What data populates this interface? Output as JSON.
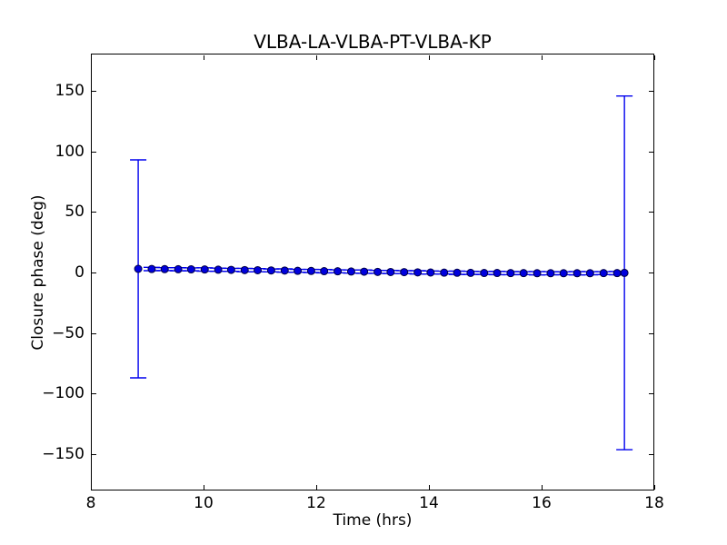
{
  "colors": {
    "background": "#ffffff",
    "frame": "#000000",
    "text": "#000000",
    "marker_face": "#0000dd",
    "marker_edge": "#000044",
    "errorbar": "#0000ee"
  },
  "chart_data": {
    "type": "scatter",
    "title": "VLBA-LA-VLBA-PT-VLBA-KP",
    "xlabel": "Time (hrs)",
    "ylabel": "Closure phase (deg)",
    "xlim": [
      8,
      18
    ],
    "ylim": [
      -180,
      180
    ],
    "xticks": [
      8,
      10,
      12,
      14,
      16,
      18
    ],
    "yticks": [
      150,
      100,
      50,
      0,
      -50,
      -100,
      -150
    ],
    "grid": false,
    "legend": false,
    "marker": "circle",
    "marker_size_px": 9,
    "errorbar_capsize_px": 18,
    "series": [
      {
        "name": "closure-phase",
        "x": [
          8.84,
          9.08,
          9.31,
          9.55,
          9.78,
          10.02,
          10.26,
          10.49,
          10.73,
          10.96,
          11.2,
          11.44,
          11.67,
          11.91,
          12.14,
          12.38,
          12.62,
          12.85,
          13.09,
          13.32,
          13.56,
          13.8,
          14.03,
          14.27,
          14.5,
          14.74,
          14.98,
          15.21,
          15.45,
          15.68,
          15.92,
          16.16,
          16.39,
          16.63,
          16.86,
          17.1,
          17.34,
          17.47
        ],
        "y": [
          3.0,
          2.9,
          2.8,
          2.7,
          2.6,
          2.5,
          2.3,
          2.2,
          2.0,
          1.9,
          1.7,
          1.6,
          1.4,
          1.3,
          1.1,
          1.0,
          0.8,
          0.7,
          0.5,
          0.4,
          0.3,
          0.1,
          0.0,
          -0.1,
          -0.2,
          -0.3,
          -0.4,
          -0.4,
          -0.5,
          -0.5,
          -0.6,
          -0.6,
          -0.6,
          -0.6,
          -0.6,
          -0.5,
          -0.5,
          -0.3
        ],
        "yerr": [
          90,
          1.4,
          1.2,
          1.3,
          1.2,
          1.4,
          1.3,
          1.2,
          1.4,
          1.3,
          1.2,
          1.4,
          1.2,
          1.3,
          1.4,
          1.2,
          1.3,
          1.4,
          1.2,
          1.3,
          1.2,
          1.4,
          1.3,
          1.2,
          1.4,
          1.3,
          1.2,
          1.4,
          1.3,
          1.2,
          1.4,
          1.3,
          1.2,
          1.4,
          1.3,
          1.2,
          1.4,
          146
        ]
      }
    ]
  }
}
